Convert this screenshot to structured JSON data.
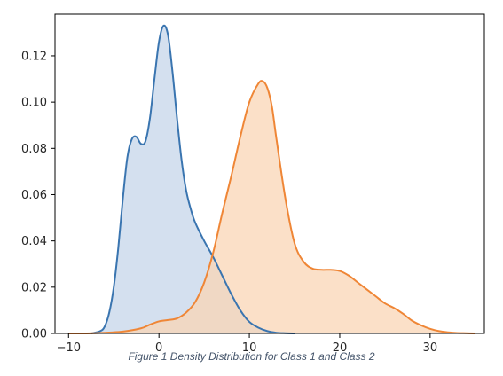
{
  "caption": "Figure 1 Density Distribution for Class 1 and Class 2",
  "chart_data": {
    "type": "area",
    "title": "",
    "xlabel": "",
    "ylabel": "",
    "xlim": [
      -11.5,
      36
    ],
    "ylim": [
      0,
      0.138
    ],
    "xticks": [
      -10,
      0,
      10,
      20,
      30
    ],
    "xtick_labels": [
      "−10",
      "0",
      "10",
      "20",
      "30"
    ],
    "yticks": [
      0,
      0.02,
      0.04,
      0.06,
      0.08,
      0.1,
      0.12
    ],
    "ytick_labels": [
      "0.00",
      "0.02",
      "0.04",
      "0.06",
      "0.08",
      "0.10",
      "0.12"
    ],
    "grid": false,
    "legend": false,
    "series": [
      {
        "color": "#3a75b0",
        "fill": "#c6d6ea",
        "x": [
          -7.5,
          -6.5,
          -6,
          -5.5,
          -5,
          -4.5,
          -4,
          -3.5,
          -3,
          -2.5,
          -2,
          -1.5,
          -1,
          -0.5,
          0,
          0.5,
          1,
          1.5,
          2,
          2.5,
          3,
          3.5,
          4,
          5,
          6,
          7,
          8,
          9,
          10,
          11,
          12,
          13,
          14,
          15
        ],
        "y": [
          0.0,
          0.001,
          0.003,
          0.009,
          0.02,
          0.037,
          0.058,
          0.076,
          0.084,
          0.085,
          0.082,
          0.083,
          0.093,
          0.11,
          0.126,
          0.133,
          0.129,
          0.113,
          0.093,
          0.075,
          0.062,
          0.054,
          0.048,
          0.04,
          0.033,
          0.025,
          0.017,
          0.01,
          0.005,
          0.0025,
          0.001,
          0.0003,
          0.0001,
          0.0
        ]
      },
      {
        "color": "#ef8636",
        "fill": "#f9d6b6",
        "x": [
          -10,
          -8,
          -6,
          -4,
          -2,
          -1,
          0,
          1,
          2,
          3,
          4,
          5,
          6,
          7,
          8,
          9,
          10,
          11,
          11.5,
          12,
          12.5,
          13,
          14,
          15,
          16,
          17,
          18,
          19,
          20,
          21,
          22,
          23,
          24,
          25,
          26,
          27,
          28,
          29,
          30,
          31,
          32,
          33,
          34,
          35
        ],
        "y": [
          0.0,
          0.0,
          0.0003,
          0.0008,
          0.0022,
          0.0038,
          0.0052,
          0.0058,
          0.0065,
          0.009,
          0.0135,
          0.022,
          0.035,
          0.052,
          0.068,
          0.085,
          0.1,
          0.108,
          0.109,
          0.106,
          0.098,
          0.084,
          0.058,
          0.039,
          0.031,
          0.028,
          0.0275,
          0.0275,
          0.027,
          0.025,
          0.022,
          0.019,
          0.016,
          0.013,
          0.011,
          0.0085,
          0.0055,
          0.0035,
          0.002,
          0.001,
          0.0005,
          0.0002,
          0.0001,
          0.0
        ]
      }
    ]
  }
}
